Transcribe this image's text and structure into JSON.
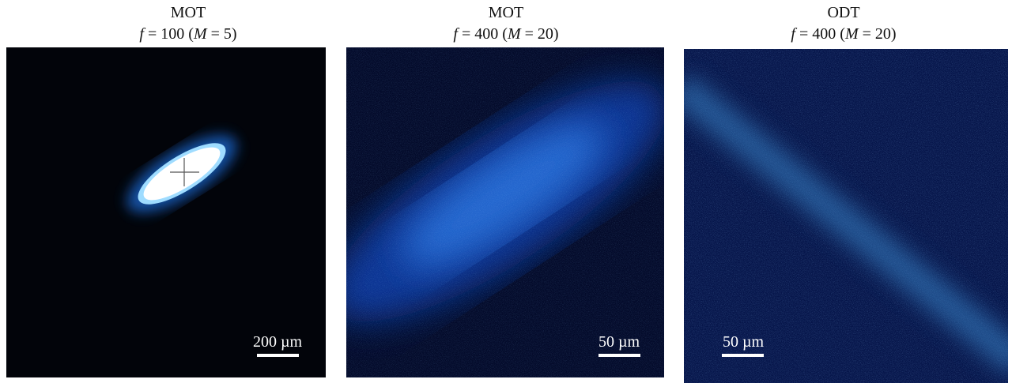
{
  "panels": [
    {
      "title": "MOT",
      "subtitle": [
        {
          "text": "f",
          "italic": true
        },
        {
          "text": " = 100 (",
          "italic": false
        },
        {
          "text": "M",
          "italic": true
        },
        {
          "text": " = 5)",
          "italic": false
        }
      ],
      "scale_bar": "200 µm"
    },
    {
      "title": "MOT",
      "subtitle": [
        {
          "text": "f",
          "italic": true
        },
        {
          "text": " = 400 (",
          "italic": false
        },
        {
          "text": "M",
          "italic": true
        },
        {
          "text": " = 20)",
          "italic": false
        }
      ],
      "scale_bar": "50 µm"
    },
    {
      "title": "ODT",
      "subtitle": [
        {
          "text": "f",
          "italic": true
        },
        {
          "text": " = 400 (",
          "italic": false
        },
        {
          "text": "M",
          "italic": true
        },
        {
          "text": " = 20)",
          "italic": false
        }
      ],
      "scale_bar": "50 µm"
    }
  ]
}
